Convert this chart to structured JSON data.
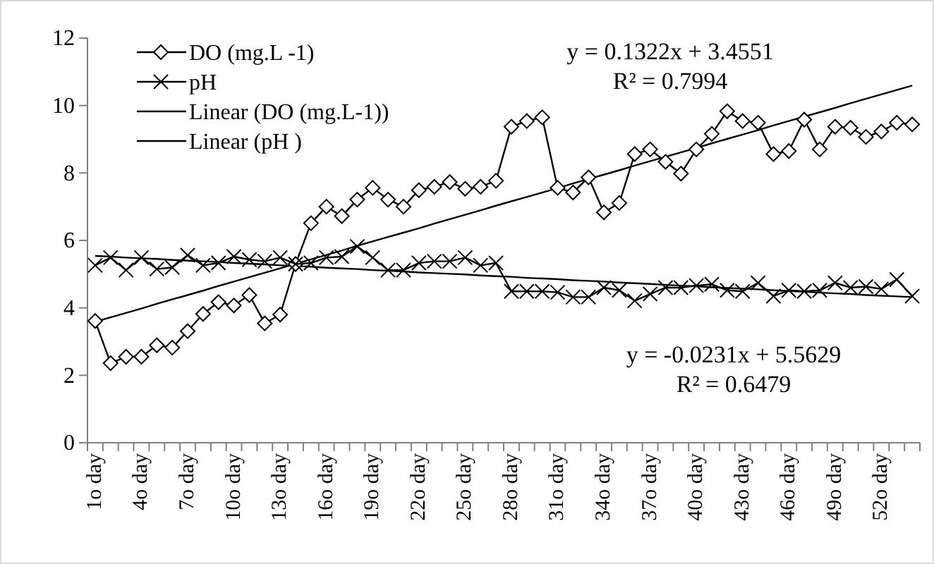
{
  "chart_data": {
    "type": "line",
    "categories": [
      "1o day",
      null,
      null,
      "4o day",
      null,
      null,
      "7o day",
      null,
      null,
      "10o day",
      null,
      null,
      "13o day",
      null,
      null,
      "16o day",
      null,
      null,
      "19o day",
      null,
      null,
      "22o day",
      null,
      null,
      "25o day",
      null,
      null,
      "28o day",
      null,
      null,
      "31o day",
      null,
      null,
      "34o day",
      null,
      null,
      "37o day",
      null,
      null,
      "40o day",
      null,
      null,
      "43o day",
      null,
      null,
      "46o day",
      null,
      null,
      "49o day",
      null,
      null,
      "52o day",
      null,
      null
    ],
    "series": [
      {
        "name": "DO (mg.L -1)",
        "color": "#000000",
        "marker": "diamond",
        "values": [
          3.61,
          2.36,
          2.55,
          2.55,
          2.89,
          2.82,
          3.31,
          3.82,
          4.17,
          4.07,
          4.38,
          3.54,
          3.8,
          5.3,
          6.51,
          7.0,
          6.72,
          7.21,
          7.56,
          7.21,
          7.0,
          7.49,
          7.59,
          7.73,
          7.53,
          7.59,
          7.77,
          9.37,
          9.54,
          9.65,
          7.56,
          7.42,
          7.87,
          6.83,
          7.11,
          8.56,
          8.7,
          8.33,
          7.98,
          8.7,
          9.16,
          9.83,
          9.54,
          9.49,
          8.56,
          8.65,
          9.58,
          8.7,
          9.37,
          9.34,
          9.07,
          9.23,
          9.49,
          9.44
        ]
      },
      {
        "name": "pH",
        "color": "#000000",
        "marker": "cross",
        "values": [
          5.26,
          5.49,
          5.12,
          5.49,
          5.15,
          5.2,
          5.56,
          5.26,
          5.33,
          5.52,
          5.43,
          5.38,
          5.49,
          5.3,
          5.33,
          5.49,
          5.52,
          5.82,
          5.49,
          5.12,
          5.12,
          5.33,
          5.38,
          5.38,
          5.49,
          5.26,
          5.33,
          4.49,
          4.49,
          4.49,
          4.46,
          4.32,
          4.32,
          4.6,
          4.52,
          4.21,
          4.41,
          4.6,
          4.6,
          4.66,
          4.7,
          4.52,
          4.49,
          4.74,
          4.35,
          4.52,
          4.49,
          4.52,
          4.74,
          4.6,
          4.63,
          4.56,
          4.84,
          4.35
        ]
      },
      {
        "name": "Linear (DO (mg.L-1))",
        "color": "#000000",
        "marker": "none",
        "values": [
          3.59,
          3.72,
          3.85,
          3.98,
          4.12,
          4.25,
          4.38,
          4.51,
          4.65,
          4.78,
          4.91,
          5.04,
          5.17,
          5.31,
          5.44,
          5.57,
          5.7,
          5.84,
          5.97,
          6.1,
          6.23,
          6.36,
          6.5,
          6.63,
          6.76,
          6.89,
          7.03,
          7.16,
          7.29,
          7.42,
          7.55,
          7.69,
          7.82,
          7.95,
          8.08,
          8.22,
          8.35,
          8.48,
          8.61,
          8.74,
          8.88,
          9.01,
          9.14,
          9.27,
          9.41,
          9.54,
          9.67,
          9.8,
          9.93,
          10.07,
          10.2,
          10.33,
          10.46,
          10.59
        ]
      },
      {
        "name": "Linear (pH )",
        "color": "#000000",
        "marker": "none",
        "values": [
          5.54,
          5.52,
          5.49,
          5.47,
          5.45,
          5.42,
          5.4,
          5.38,
          5.36,
          5.33,
          5.31,
          5.29,
          5.26,
          5.24,
          5.22,
          5.19,
          5.17,
          5.15,
          5.12,
          5.1,
          5.08,
          5.05,
          5.03,
          5.01,
          4.99,
          4.96,
          4.94,
          4.92,
          4.89,
          4.87,
          4.85,
          4.82,
          4.8,
          4.78,
          4.75,
          4.73,
          4.71,
          4.68,
          4.66,
          4.64,
          4.61,
          4.59,
          4.57,
          4.55,
          4.52,
          4.5,
          4.48,
          4.45,
          4.43,
          4.41,
          4.38,
          4.36,
          4.34,
          4.32
        ]
      }
    ],
    "ylim": [
      0,
      12
    ],
    "yticks": [
      0,
      2,
      4,
      6,
      8,
      10,
      12
    ],
    "grid": false,
    "legend": "top left",
    "annotations": [
      "y = 0.1322x + 3.4551",
      "R² = 0.7994",
      "y = -0.0231x + 5.5629",
      "R² = 0.6479"
    ]
  }
}
